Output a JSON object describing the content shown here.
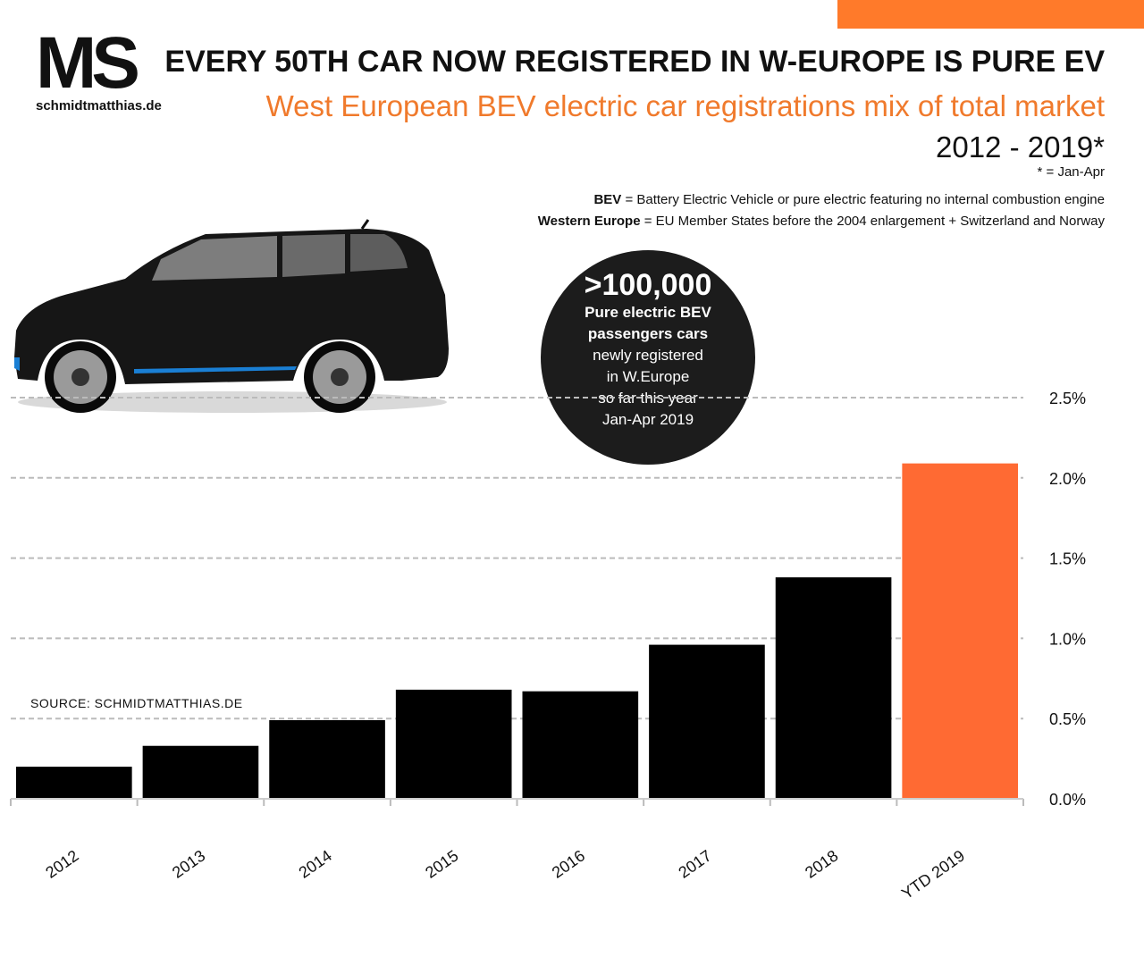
{
  "header": {
    "logo_mark": "MS",
    "logo_site": "schmidtmatthias.de",
    "title": "EVERY 50TH CAR NOW REGISTERED IN W-EUROPE IS PURE EV",
    "subtitle": "West European BEV electric car registrations mix of total market",
    "period": "2012 - 2019*",
    "footnote": "* = Jan-Apr",
    "def1_term": "BEV",
    "def1_text": " = Battery Electric Vehicle or pure electric featuring no internal combustion engine",
    "def2_term": "Western Europe",
    "def2_text": " = EU Member States before the 2004 enlargement + Switzerland and Norway"
  },
  "bubble": {
    "big": ">100,000",
    "line1": "Pure electric BEV",
    "line2": "passengers cars",
    "line3": "newly registered",
    "line4": "in W.Europe",
    "line5": "so far this year",
    "line6": "Jan-Apr 2019"
  },
  "source": "SOURCE: SCHMIDTMATTHIAS.DE",
  "colors": {
    "bar": "#000000",
    "highlight": "#ff6a33",
    "accent": "#ff7a2a",
    "subtitle": "#f07a2c",
    "grid": "#bbbbbb"
  },
  "chart_data": {
    "type": "bar",
    "categories": [
      "2012",
      "2013",
      "2014",
      "2015",
      "2016",
      "2017",
      "2018",
      "YTD 2019"
    ],
    "values": [
      0.2,
      0.33,
      0.49,
      0.68,
      0.67,
      0.96,
      1.38,
      2.09
    ],
    "highlight_index": 7,
    "ylim": [
      0,
      2.5
    ],
    "yticks": [
      0.0,
      0.5,
      1.0,
      1.5,
      2.0,
      2.5
    ],
    "ytick_labels": [
      "0.0%",
      "0.5%",
      "1.0%",
      "1.5%",
      "2.0%",
      "2.5%"
    ],
    "y_axis_side": "right",
    "grid": true
  }
}
